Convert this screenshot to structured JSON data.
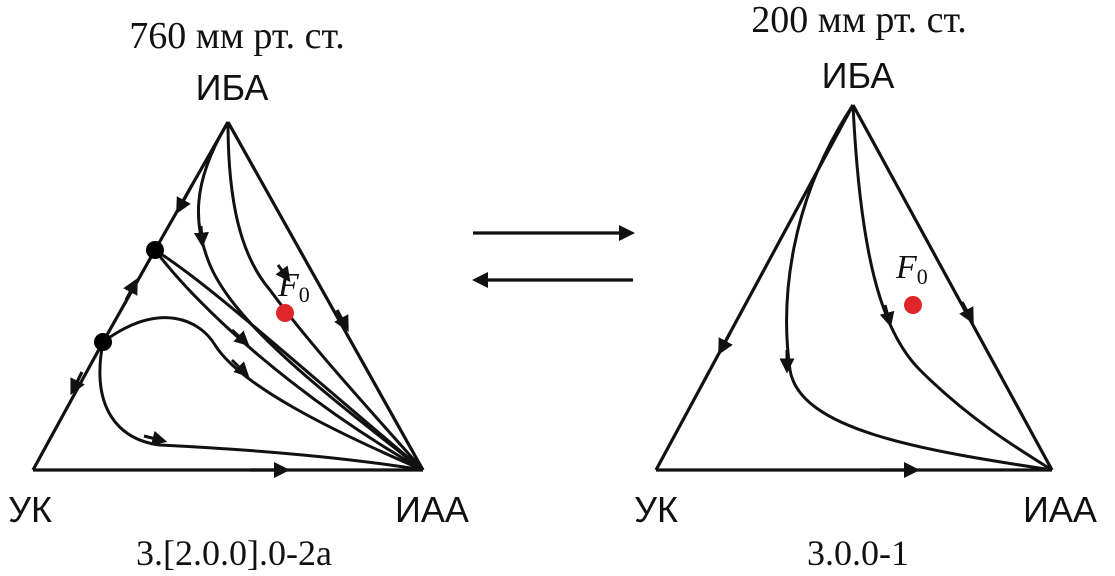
{
  "left": {
    "pressure": "760 мм рт. ст.",
    "vertices": {
      "top": "ИБА",
      "bottom_left": "УК",
      "bottom_right": "ИАА"
    },
    "feed_label_base": "F",
    "feed_label_sub": "0",
    "class_code": "3.[2.0.0].0-2a"
  },
  "right": {
    "pressure": "200 мм рт. ст.",
    "vertices": {
      "top": "ИБА",
      "bottom_left": "УК",
      "bottom_right": "ИАА"
    },
    "feed_label_base": "F",
    "feed_label_sub": "0",
    "class_code": "3.0.0-1"
  },
  "transition_arrows": [
    "right",
    "left"
  ],
  "colors": {
    "line": "#111111",
    "feed_point": "#e0262b",
    "singular_point": "#000000"
  }
}
